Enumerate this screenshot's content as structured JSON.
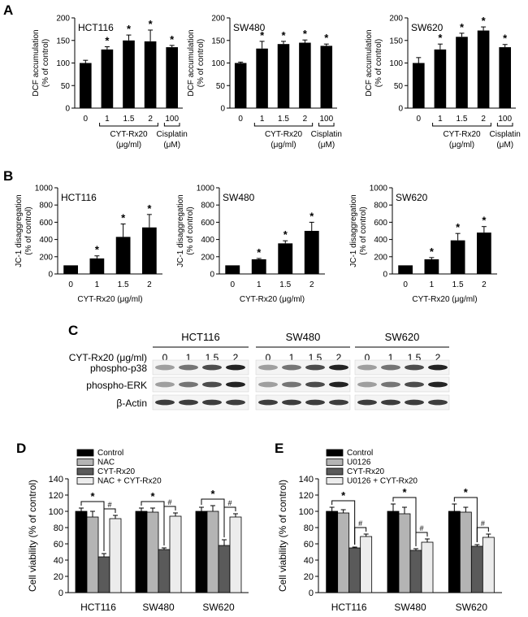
{
  "panels": {
    "A": "A",
    "B": "B",
    "C": "C",
    "D": "D",
    "E": "E"
  },
  "sig": {
    "star": "*",
    "hash": "#"
  },
  "colors": {
    "black": "#000000",
    "light_gray": "#b4b4b4",
    "dark_gray": "#5a5a5a",
    "white_gray": "#ececec"
  },
  "chart_data": [
    {
      "id": "A1",
      "type": "bar",
      "cell_line": "HCT116",
      "ylabel": [
        "DCF accumulation",
        "(% of control)"
      ],
      "ylim": [
        0,
        200
      ],
      "yticks": [
        0,
        50,
        100,
        150,
        200
      ],
      "categories": [
        "0",
        "1",
        "1.5",
        "2",
        "100"
      ],
      "values": [
        100,
        130,
        150,
        148,
        135
      ],
      "errors": [
        6,
        6,
        12,
        25,
        4
      ],
      "significant": [
        false,
        true,
        true,
        true,
        true
      ],
      "groups": [
        {
          "lines": [
            "CYT-Rx20",
            "(μg/ml)"
          ],
          "from": 1,
          "to": 3
        },
        {
          "lines": [
            "Cisplatin",
            "(μM)"
          ],
          "from": 4,
          "to": 4
        }
      ]
    },
    {
      "id": "A2",
      "type": "bar",
      "cell_line": "SW480",
      "ylabel": [
        "DCF accumulation",
        "(% of control)"
      ],
      "ylim": [
        0,
        200
      ],
      "yticks": [
        0,
        50,
        100,
        150,
        200
      ],
      "categories": [
        "0",
        "1",
        "1.5",
        "2",
        "100"
      ],
      "values": [
        100,
        132,
        142,
        145,
        138
      ],
      "errors": [
        2,
        16,
        6,
        6,
        4
      ],
      "significant": [
        false,
        true,
        true,
        true,
        true
      ],
      "groups": [
        {
          "lines": [
            "CYT-Rx20",
            "(μg/ml)"
          ],
          "from": 1,
          "to": 3
        },
        {
          "lines": [
            "Cisplatin",
            "(μM)"
          ],
          "from": 4,
          "to": 4
        }
      ]
    },
    {
      "id": "A3",
      "type": "bar",
      "cell_line": "SW620",
      "ylabel": [
        "DCF accumulation",
        "(% of control)"
      ],
      "ylim": [
        0,
        200
      ],
      "yticks": [
        0,
        50,
        100,
        150,
        200
      ],
      "categories": [
        "0",
        "1",
        "1.5",
        "2",
        "100"
      ],
      "values": [
        100,
        130,
        158,
        172,
        135
      ],
      "errors": [
        12,
        12,
        8,
        8,
        6
      ],
      "significant": [
        false,
        true,
        true,
        true,
        true
      ],
      "groups": [
        {
          "lines": [
            "CYT-Rx20",
            "(μg/ml)"
          ],
          "from": 1,
          "to": 3
        },
        {
          "lines": [
            "Cisplatin",
            "(μM)"
          ],
          "from": 4,
          "to": 4
        }
      ]
    },
    {
      "id": "B1",
      "type": "bar",
      "cell_line": "HCT116",
      "ylabel": [
        "JC-1 disaggregation",
        "(% of control)"
      ],
      "xlabel": "CYT-Rx20 (μg/ml)",
      "ylim": [
        0,
        1000
      ],
      "yticks": [
        0,
        200,
        400,
        600,
        800,
        1000
      ],
      "categories": [
        "0",
        "1",
        "1.5",
        "2"
      ],
      "values": [
        100,
        180,
        430,
        540
      ],
      "errors": [
        0,
        30,
        150,
        150
      ],
      "significant": [
        false,
        true,
        true,
        true
      ]
    },
    {
      "id": "B2",
      "type": "bar",
      "cell_line": "SW480",
      "ylabel": [
        "JC-1 disaggregation",
        "(% of control)"
      ],
      "xlabel": "CYT-Rx20 (μg/ml)",
      "ylim": [
        0,
        1000
      ],
      "yticks": [
        0,
        200,
        400,
        600,
        800,
        1000
      ],
      "categories": [
        "0",
        "1",
        "1.5",
        "2"
      ],
      "values": [
        100,
        170,
        355,
        500
      ],
      "errors": [
        0,
        10,
        30,
        100
      ],
      "significant": [
        false,
        true,
        true,
        true
      ]
    },
    {
      "id": "B3",
      "type": "bar",
      "cell_line": "SW620",
      "ylabel": [
        "JC-1 disaggregation",
        "(% of control)"
      ],
      "xlabel": "CYT-Rx20 (μg/ml)",
      "ylim": [
        0,
        1000
      ],
      "yticks": [
        0,
        200,
        400,
        600,
        800,
        1000
      ],
      "categories": [
        "0",
        "1",
        "1.5",
        "2"
      ],
      "values": [
        100,
        170,
        390,
        480
      ],
      "errors": [
        0,
        20,
        80,
        70
      ],
      "significant": [
        false,
        true,
        true,
        true
      ]
    },
    {
      "id": "C",
      "type": "table",
      "kind": "western_blot",
      "cell_lines": [
        "HCT116",
        "SW480",
        "SW620"
      ],
      "treatment_label": "CYT-Rx20 (μg/ml)",
      "lanes": [
        "0",
        "1",
        "1.5",
        "2"
      ],
      "proteins": [
        "phospho-p38",
        "phospho-ERK",
        "β-Actin"
      ]
    },
    {
      "id": "D",
      "type": "bar",
      "ylabel": "Cell viability (% of control)",
      "ylim": [
        0,
        140
      ],
      "yticks": [
        0,
        20,
        40,
        60,
        80,
        100,
        120,
        140
      ],
      "categories": [
        "HCT116",
        "SW480",
        "SW620"
      ],
      "series": [
        {
          "name": "Control",
          "color": "#000000",
          "values": [
            100,
            100,
            100
          ],
          "errors": [
            4,
            4,
            5
          ]
        },
        {
          "name": "NAC",
          "color": "#b4b4b4",
          "values": [
            93,
            99,
            100
          ],
          "errors": [
            7,
            5,
            7
          ]
        },
        {
          "name": "CYT-Rx20",
          "color": "#5a5a5a",
          "values": [
            44,
            53,
            58
          ],
          "errors": [
            4,
            2,
            7
          ]
        },
        {
          "name": "NAC + CYT-Rx20",
          "color": "#ececec",
          "values": [
            91,
            94,
            93
          ],
          "errors": [
            4,
            4,
            4
          ]
        }
      ],
      "legend": "top-left"
    },
    {
      "id": "E",
      "type": "bar",
      "ylabel": "Cell viability (% of control)",
      "ylim": [
        0,
        140
      ],
      "yticks": [
        0,
        20,
        40,
        60,
        80,
        100,
        120,
        140
      ],
      "categories": [
        "HCT116",
        "SW480",
        "SW620"
      ],
      "series": [
        {
          "name": "Control",
          "color": "#000000",
          "values": [
            100,
            100,
            100
          ],
          "errors": [
            5,
            9,
            9
          ]
        },
        {
          "name": "U0126",
          "color": "#b4b4b4",
          "values": [
            98,
            97,
            99
          ],
          "errors": [
            4,
            8,
            6
          ]
        },
        {
          "name": "CYT-Rx20",
          "color": "#5a5a5a",
          "values": [
            55,
            52,
            57
          ],
          "errors": [
            1,
            2,
            2
          ]
        },
        {
          "name": "U0126 + CYT-Rx20",
          "color": "#ececec",
          "values": [
            69,
            62,
            68
          ],
          "errors": [
            3,
            4,
            4
          ]
        }
      ],
      "legend": "top-left"
    }
  ]
}
